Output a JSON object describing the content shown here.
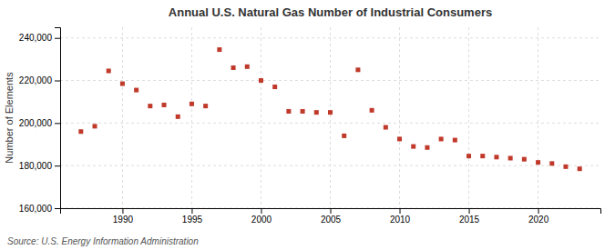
{
  "chart_data": {
    "type": "scatter",
    "title": "Annual U.S. Natural Gas Number of Industrial Consumers",
    "ylabel": "Number of Elements",
    "source": "Source: U.S. Energy Information Administration",
    "x": [
      1987,
      1988,
      1989,
      1990,
      1991,
      1992,
      1993,
      1994,
      1995,
      1996,
      1997,
      1998,
      1999,
      2000,
      2001,
      2002,
      2003,
      2004,
      2005,
      2006,
      2007,
      2008,
      2009,
      2010,
      2011,
      2012,
      2013,
      2014,
      2015,
      2016,
      2017,
      2018,
      2019,
      2020,
      2021,
      2022,
      2023
    ],
    "values": [
      196000,
      198500,
      224500,
      218500,
      215500,
      208000,
      208500,
      203000,
      209000,
      208000,
      234500,
      226000,
      226500,
      220000,
      217000,
      205500,
      205500,
      205000,
      205000,
      194000,
      225000,
      206000,
      198000,
      192500,
      189000,
      188500,
      192500,
      192000,
      184500,
      184500,
      184000,
      183500,
      183000,
      181500,
      181000,
      179500,
      178500
    ],
    "color": "#c0392b",
    "marker": "square",
    "xlim": [
      1985.5,
      2024.5
    ],
    "xticks": [
      1990,
      1995,
      2000,
      2005,
      2010,
      2015,
      2020
    ],
    "ylim": [
      160000,
      245000
    ],
    "yticks": [
      {
        "value": 160000,
        "label": "160,000"
      },
      {
        "value": 180000,
        "label": "180,000"
      },
      {
        "value": 200000,
        "label": "200,000"
      },
      {
        "value": 220000,
        "label": "220,000"
      },
      {
        "value": 240000,
        "label": "240,000"
      }
    ],
    "grid": true
  }
}
